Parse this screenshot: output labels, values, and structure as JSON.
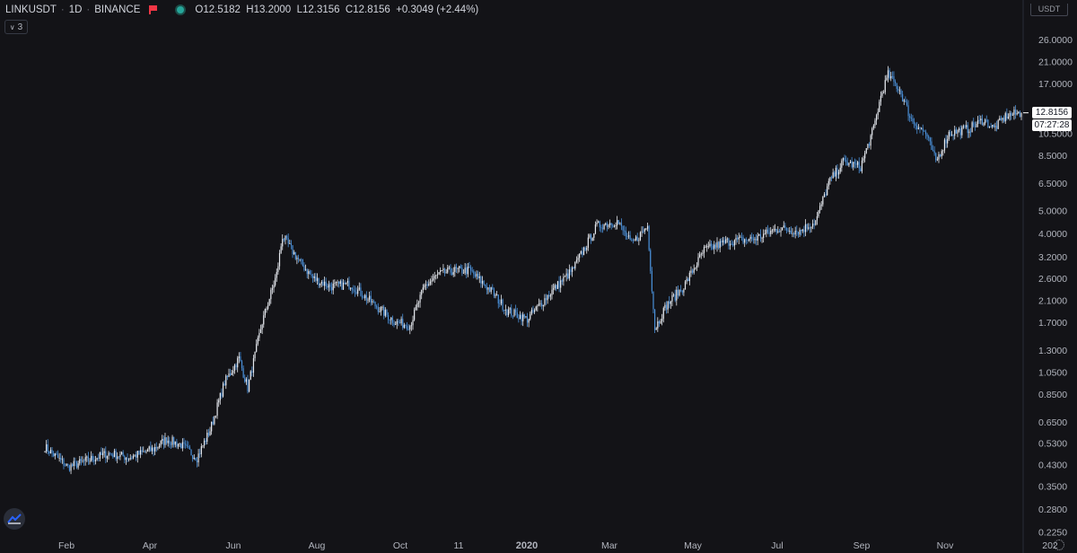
{
  "header": {
    "symbol": "LINKUSDT",
    "interval": "1D",
    "exchange": "BINANCE",
    "open": "O12.5182",
    "high": "H13.2000",
    "low": "L12.3156",
    "close": "C12.8156",
    "change": "+0.3049 (+2.44%)"
  },
  "indicator_toggle": {
    "count": "3"
  },
  "currency": "USDT",
  "last_price": "12.8156",
  "countdown": "07:27:28",
  "colors": {
    "background": "#131317",
    "candle_up": "#e6e9ef",
    "candle_down": "#4a90d9",
    "axis_text": "#b2b5be"
  },
  "icons": [
    "flag-icon",
    "status-dot-icon",
    "chevron-down-icon",
    "tradingview-logo-icon",
    "gear-icon"
  ],
  "chart_data": {
    "type": "candlestick",
    "title": "LINKUSDT · 1D · BINANCE",
    "y_scale": "log",
    "ylim": [
      0.22,
      32
    ],
    "y_ticks": [
      "26.0000",
      "21.0000",
      "17.0000",
      "10.5000",
      "8.5000",
      "6.5000",
      "5.0000",
      "4.0000",
      "3.2000",
      "2.6000",
      "2.1000",
      "1.7000",
      "1.3000",
      "1.0500",
      "0.8500",
      "0.6500",
      "0.5300",
      "0.4300",
      "0.3500",
      "0.2800",
      "0.2250"
    ],
    "x_ticks": [
      "Feb",
      "Apr",
      "Jun",
      "Aug",
      "Oct",
      "11",
      "2020",
      "Mar",
      "May",
      "Jul",
      "Sep",
      "Nov",
      "202"
    ],
    "x_range": [
      "2019-01-16",
      "2020-11-20"
    ],
    "series": [
      {
        "x": [
          "2019-01-16",
          "2019-02-01",
          "2019-02-15",
          "2019-03-01",
          "2019-03-15",
          "2019-04-01",
          "2019-04-10",
          "2019-04-20",
          "2019-05-01",
          "2019-05-10",
          "2019-05-20",
          "2019-05-30",
          "2019-06-05",
          "2019-06-15",
          "2019-06-25",
          "2019-06-29",
          "2019-07-10",
          "2019-07-20",
          "2019-08-01",
          "2019-08-15",
          "2019-09-01",
          "2019-09-15",
          "2019-09-25",
          "2019-10-05",
          "2019-10-15",
          "2019-10-25",
          "2019-11-05",
          "2019-11-20",
          "2019-12-01",
          "2019-12-15",
          "2020-01-01",
          "2020-01-15",
          "2020-02-01",
          "2020-02-15",
          "2020-02-25",
          "2020-03-07",
          "2020-03-12",
          "2020-03-20",
          "2020-04-01",
          "2020-04-15",
          "2020-05-01",
          "2020-05-20",
          "2020-06-05",
          "2020-06-20",
          "2020-07-01",
          "2020-07-10",
          "2020-07-20",
          "2020-08-01",
          "2020-08-10",
          "2020-08-15",
          "2020-08-20",
          "2020-08-28",
          "2020-09-05",
          "2020-09-15",
          "2020-09-22",
          "2020-10-01",
          "2020-10-15",
          "2020-10-25",
          "2020-11-01",
          "2020-11-10",
          "2020-11-20"
        ],
        "y": [
          0.51,
          0.42,
          0.45,
          0.48,
          0.46,
          0.5,
          0.55,
          0.52,
          0.46,
          0.6,
          0.95,
          1.2,
          0.9,
          1.7,
          2.7,
          3.9,
          3.1,
          2.6,
          2.4,
          2.45,
          2.0,
          1.7,
          1.65,
          2.4,
          2.7,
          2.8,
          2.8,
          2.3,
          1.9,
          1.75,
          2.3,
          2.8,
          4.3,
          4.5,
          3.6,
          4.3,
          1.6,
          2.0,
          2.4,
          3.4,
          3.7,
          3.8,
          4.2,
          4.1,
          4.5,
          6.5,
          8.0,
          7.6,
          11.0,
          15.0,
          18.5,
          16.0,
          12.0,
          10.5,
          8.0,
          10.5,
          11.0,
          12.0,
          11.0,
          12.5,
          12.8
        ]
      }
    ]
  }
}
